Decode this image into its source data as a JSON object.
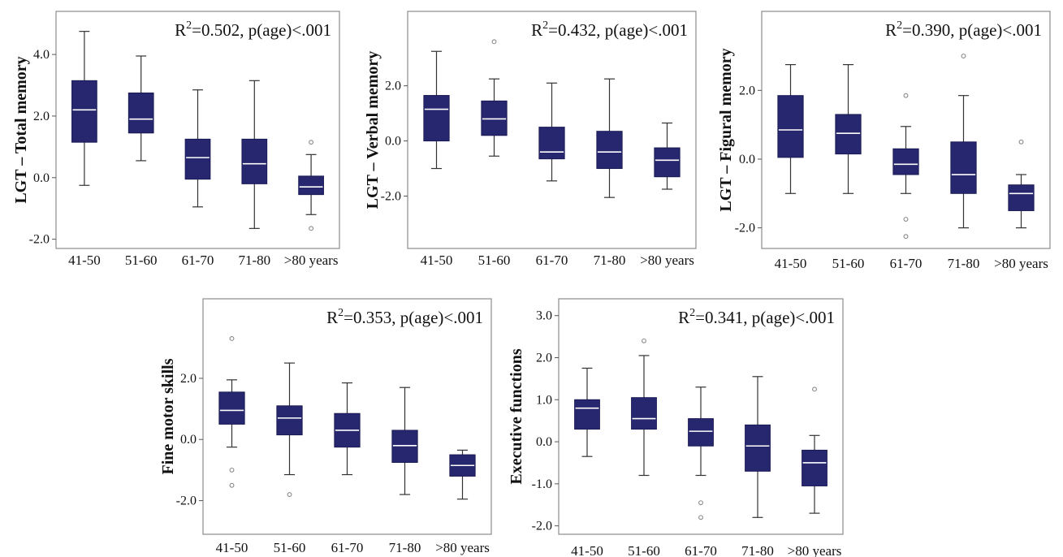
{
  "colors": {
    "box_fill": "#27276f",
    "median": "#ffffff",
    "whisker": "#333333",
    "outlier": "#888888",
    "frame": "#8c8c8c"
  },
  "chart_data": [
    {
      "type": "box",
      "ylabel": "LGT – Total memory",
      "annotation": {
        "prefix": "R",
        "sup": "2",
        "suffix": "=0.502, p(age)<.001"
      },
      "categories": [
        "41-50",
        "51-60",
        "61-70",
        "71-80",
        ">80 years"
      ],
      "yticks": [
        {
          "value": 4.0,
          "label": "4.0"
        },
        {
          "value": 2.0,
          "label": "2.0"
        },
        {
          "value": 0.0,
          "label": "0.0"
        },
        {
          "value": -2.0,
          "label": "-2.0"
        }
      ],
      "ylim": [
        -2.3,
        5.4
      ],
      "boxes": [
        {
          "min": -0.25,
          "q1": 1.15,
          "median": 2.2,
          "q3": 3.15,
          "max": 4.75,
          "outliers": []
        },
        {
          "min": 0.55,
          "q1": 1.45,
          "median": 1.9,
          "q3": 2.75,
          "max": 3.95,
          "outliers": []
        },
        {
          "min": -0.95,
          "q1": -0.05,
          "median": 0.65,
          "q3": 1.25,
          "max": 2.85,
          "outliers": []
        },
        {
          "min": -1.65,
          "q1": -0.2,
          "median": 0.45,
          "q3": 1.25,
          "max": 3.15,
          "outliers": []
        },
        {
          "min": -1.2,
          "q1": -0.55,
          "median": -0.3,
          "q3": 0.05,
          "max": 0.75,
          "outliers": [
            1.15,
            -1.65
          ]
        }
      ]
    },
    {
      "type": "box",
      "ylabel": "LGT – Verbal memory",
      "annotation": {
        "prefix": "R",
        "sup": "2",
        "suffix": "=0.432, p(age)<.001"
      },
      "categories": [
        "41-50",
        "51-60",
        "61-70",
        "71-80",
        ">80 years"
      ],
      "yticks": [
        {
          "value": 2.0,
          "label": "2.0"
        },
        {
          "value": 0.0,
          "label": "0.0"
        },
        {
          "value": -2.0,
          "label": "-2.0"
        }
      ],
      "ylim": [
        -3.9,
        4.7
      ],
      "boxes": [
        {
          "min": -1.0,
          "q1": 0.0,
          "median": 1.15,
          "q3": 1.65,
          "max": 3.25,
          "outliers": []
        },
        {
          "min": -0.55,
          "q1": 0.2,
          "median": 0.8,
          "q3": 1.45,
          "max": 2.25,
          "outliers": [
            3.6
          ]
        },
        {
          "min": -1.45,
          "q1": -0.65,
          "median": -0.4,
          "q3": 0.5,
          "max": 2.1,
          "outliers": []
        },
        {
          "min": -2.05,
          "q1": -1.0,
          "median": -0.4,
          "q3": 0.35,
          "max": 2.25,
          "outliers": []
        },
        {
          "min": -1.75,
          "q1": -1.3,
          "median": -0.7,
          "q3": -0.25,
          "max": 0.65,
          "outliers": []
        }
      ]
    },
    {
      "type": "box",
      "ylabel": "LGT – Figural memory",
      "annotation": {
        "prefix": "R",
        "sup": "2",
        "suffix": "=0.390, p(age)<.001"
      },
      "categories": [
        "41-50",
        "51-60",
        "61-70",
        "71-80",
        ">80 years"
      ],
      "yticks": [
        {
          "value": 2.0,
          "label": "2.0"
        },
        {
          "value": 0.0,
          "label": "0.0"
        },
        {
          "value": -2.0,
          "label": "-2.0"
        }
      ],
      "ylim": [
        -2.6,
        4.3
      ],
      "boxes": [
        {
          "min": -1.0,
          "q1": 0.05,
          "median": 0.85,
          "q3": 1.85,
          "max": 2.75,
          "outliers": []
        },
        {
          "min": -1.0,
          "q1": 0.15,
          "median": 0.75,
          "q3": 1.3,
          "max": 2.75,
          "outliers": []
        },
        {
          "min": -1.0,
          "q1": -0.45,
          "median": -0.15,
          "q3": 0.3,
          "max": 0.95,
          "outliers": [
            1.85,
            -1.75,
            -2.25
          ]
        },
        {
          "min": -2.0,
          "q1": -1.0,
          "median": -0.45,
          "q3": 0.5,
          "max": 1.85,
          "outliers": [
            3.0
          ]
        },
        {
          "min": -2.0,
          "q1": -1.5,
          "median": -1.0,
          "q3": -0.75,
          "max": -0.45,
          "outliers": [
            0.5
          ]
        }
      ]
    },
    {
      "type": "box",
      "ylabel": "Fine motor skills",
      "annotation": {
        "prefix": "R",
        "sup": "2",
        "suffix": "=0.353, p(age)<.001"
      },
      "categories": [
        "41-50",
        "51-60",
        "61-70",
        "71-80",
        ">80 years"
      ],
      "yticks": [
        {
          "value": 2.0,
          "label": "2.0"
        },
        {
          "value": 0.0,
          "label": "0.0"
        },
        {
          "value": -2.0,
          "label": "-2.0"
        }
      ],
      "ylim": [
        -3.1,
        4.6
      ],
      "boxes": [
        {
          "min": -0.25,
          "q1": 0.5,
          "median": 0.95,
          "q3": 1.55,
          "max": 1.95,
          "outliers": [
            3.3,
            -1.0,
            -1.5
          ]
        },
        {
          "min": -1.15,
          "q1": 0.15,
          "median": 0.7,
          "q3": 1.1,
          "max": 2.5,
          "outliers": [
            -1.8
          ]
        },
        {
          "min": -1.15,
          "q1": -0.25,
          "median": 0.3,
          "q3": 0.85,
          "max": 1.85,
          "outliers": []
        },
        {
          "min": -1.8,
          "q1": -0.75,
          "median": -0.2,
          "q3": 0.3,
          "max": 1.7,
          "outliers": []
        },
        {
          "min": -1.95,
          "q1": -1.2,
          "median": -0.85,
          "q3": -0.5,
          "max": -0.35,
          "outliers": []
        }
      ]
    },
    {
      "type": "box",
      "ylabel": "Executive functions",
      "annotation": {
        "prefix": "R",
        "sup": "2",
        "suffix": "=0.341, p(age)<.001"
      },
      "categories": [
        "41-50",
        "51-60",
        "61-70",
        "71-80",
        ">80 years"
      ],
      "yticks": [
        {
          "value": 3.0,
          "label": "3.0"
        },
        {
          "value": 2.0,
          "label": "2.0"
        },
        {
          "value": 1.0,
          "label": "1.0"
        },
        {
          "value": 0.0,
          "label": "0.0"
        },
        {
          "value": -1.0,
          "label": "-1.0"
        },
        {
          "value": -2.0,
          "label": "-2.0"
        }
      ],
      "ylim": [
        -2.2,
        3.4
      ],
      "boxes": [
        {
          "min": -0.35,
          "q1": 0.3,
          "median": 0.8,
          "q3": 1.0,
          "max": 1.75,
          "outliers": []
        },
        {
          "min": -0.8,
          "q1": 0.3,
          "median": 0.55,
          "q3": 1.05,
          "max": 2.05,
          "outliers": [
            2.4
          ]
        },
        {
          "min": -0.8,
          "q1": -0.1,
          "median": 0.25,
          "q3": 0.55,
          "max": 1.3,
          "outliers": [
            -1.45,
            -1.8
          ]
        },
        {
          "min": -1.8,
          "q1": -0.7,
          "median": -0.1,
          "q3": 0.4,
          "max": 1.55,
          "outliers": []
        },
        {
          "min": -1.7,
          "q1": -1.05,
          "median": -0.5,
          "q3": -0.2,
          "max": 0.15,
          "outliers": [
            1.25
          ]
        }
      ]
    }
  ]
}
